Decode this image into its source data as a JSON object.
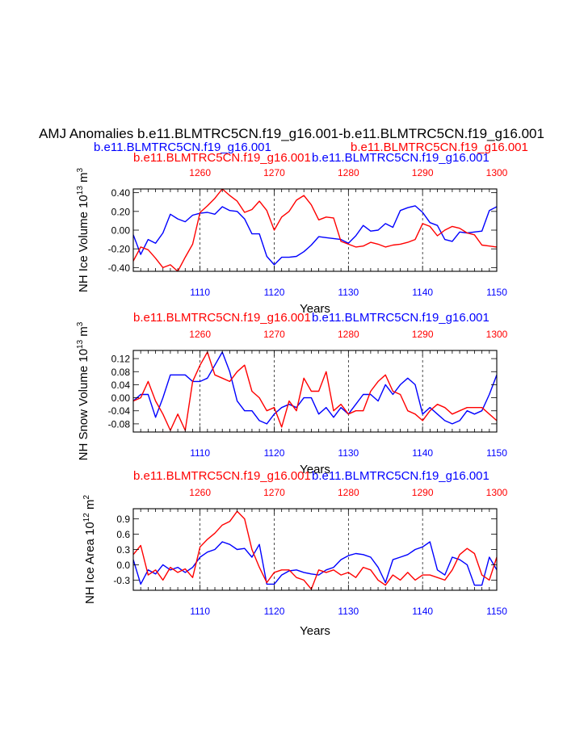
{
  "figure_title": "AMJ Anomalies b.e11.BLMTRC5CN.f19_g16.001-b.e11.BLMTRC5CN.f19_g16.001",
  "subtitle_left": "b.e11.BLMTRC5CN.f19_g16.001",
  "subtitle_right": "b.e11.BLMTRC5CN.f19_g16.001",
  "colors": {
    "blue": "#0000ff",
    "red": "#ff0000",
    "black": "#000000"
  },
  "chart_data": [
    {
      "type": "line",
      "title_left": "b.e11.BLMTRC5CN.f19_g16.001",
      "title_right": "b.e11.BLMTRC5CN.f19_g16.001",
      "ylabel": "NH Ice Volume 10",
      "ylabel_exp": "13",
      "ylabel_unit": " m",
      "ylabel_unit_exp": "3",
      "xlabel": "Years",
      "ylim": [
        -0.44,
        0.44
      ],
      "yticks": [
        -0.4,
        -0.2,
        0.0,
        0.2,
        0.4
      ],
      "ytick_labels": [
        "-0.40",
        "-0.20",
        "0.00",
        "0.20",
        "0.40"
      ],
      "x_bottom": {
        "range": [
          1101,
          1150
        ],
        "ticks": [
          1110,
          1120,
          1130,
          1140,
          1150
        ],
        "tick_labels": [
          "1110",
          "1120",
          "1130",
          "1140",
          "1150"
        ]
      },
      "x_top": {
        "range": [
          1251,
          1300
        ],
        "ticks": [
          1260,
          1270,
          1280,
          1290,
          1300
        ],
        "tick_labels": [
          "1260",
          "1270",
          "1280",
          "1290",
          "1300"
        ]
      },
      "series": [
        {
          "name": "b.e11.BLMTRC5CN.f19_g16.001",
          "color": "blue",
          "axis": "bottom",
          "values": [
            -0.05,
            -0.26,
            -0.1,
            -0.14,
            -0.03,
            0.17,
            0.12,
            0.09,
            0.16,
            0.18,
            0.19,
            0.17,
            0.25,
            0.21,
            0.2,
            0.12,
            -0.04,
            -0.04,
            -0.28,
            -0.37,
            -0.29,
            -0.29,
            -0.28,
            -0.23,
            -0.16,
            -0.07,
            -0.08,
            -0.09,
            -0.1,
            -0.14,
            -0.06,
            0.05,
            -0.01,
            0.0,
            0.07,
            0.03,
            0.21,
            0.24,
            0.26,
            0.19,
            0.08,
            0.05,
            -0.1,
            -0.12,
            -0.02,
            -0.03,
            -0.02,
            -0.01,
            0.21,
            0.25
          ]
        },
        {
          "name": "b.e11.BLMTRC5CN.f19_g16.001",
          "color": "red",
          "axis": "top",
          "values": [
            -0.33,
            -0.18,
            -0.21,
            -0.3,
            -0.4,
            -0.37,
            -0.44,
            -0.29,
            -0.15,
            0.19,
            0.26,
            0.34,
            0.44,
            0.37,
            0.31,
            0.19,
            0.22,
            0.31,
            0.21,
            0.0,
            0.14,
            0.2,
            0.32,
            0.37,
            0.27,
            0.11,
            0.14,
            0.13,
            -0.12,
            -0.15,
            -0.18,
            -0.17,
            -0.13,
            -0.15,
            -0.18,
            -0.16,
            -0.15,
            -0.13,
            -0.1,
            0.07,
            0.04,
            -0.06,
            0.0,
            0.04,
            0.02,
            -0.03,
            -0.05,
            -0.16,
            -0.17,
            -0.18
          ]
        }
      ]
    },
    {
      "type": "line",
      "title_left": "b.e11.BLMTRC5CN.f19_g16.001",
      "title_right": "b.e11.BLMTRC5CN.f19_g16.001",
      "ylabel": "NH Snow Volume 10",
      "ylabel_exp": "13",
      "ylabel_unit": " m",
      "ylabel_unit_exp": "3",
      "xlabel": "Years",
      "ylim": [
        -0.105,
        0.145
      ],
      "yticks": [
        -0.08,
        -0.04,
        0.0,
        0.04,
        0.08,
        0.12
      ],
      "ytick_labels": [
        "-0.08",
        "-0.04",
        "0.00",
        "0.04",
        "0.08",
        "0.12"
      ],
      "x_bottom": {
        "range": [
          1101,
          1150
        ],
        "ticks": [
          1110,
          1120,
          1130,
          1140,
          1150
        ],
        "tick_labels": [
          "1110",
          "1120",
          "1130",
          "1140",
          "1150"
        ]
      },
      "x_top": {
        "range": [
          1251,
          1300
        ],
        "ticks": [
          1260,
          1270,
          1280,
          1290,
          1300
        ],
        "tick_labels": [
          "1260",
          "1270",
          "1280",
          "1290",
          "1300"
        ]
      },
      "series": [
        {
          "name": "b.e11.BLMTRC5CN.f19_g16.001",
          "color": "blue",
          "axis": "bottom",
          "values": [
            -0.01,
            0.01,
            0.01,
            -0.06,
            0.0,
            0.07,
            0.07,
            0.07,
            0.05,
            0.05,
            0.06,
            0.1,
            0.14,
            0.08,
            -0.01,
            -0.04,
            -0.04,
            -0.07,
            -0.08,
            -0.05,
            -0.03,
            -0.02,
            -0.03,
            0.0,
            0.0,
            -0.05,
            -0.03,
            -0.06,
            -0.03,
            -0.05,
            -0.02,
            0.01,
            0.01,
            -0.01,
            0.04,
            0.01,
            0.04,
            0.06,
            0.04,
            -0.05,
            -0.03,
            -0.05,
            -0.07,
            -0.08,
            -0.07,
            -0.04,
            -0.05,
            -0.04,
            0.01,
            0.07
          ]
        },
        {
          "name": "b.e11.BLMTRC5CN.f19_g16.001",
          "color": "red",
          "axis": "top",
          "values": [
            -0.01,
            0.0,
            0.05,
            -0.01,
            -0.05,
            -0.1,
            -0.05,
            -0.1,
            0.05,
            0.1,
            0.14,
            0.07,
            0.06,
            0.05,
            0.08,
            0.1,
            0.02,
            0.0,
            -0.04,
            -0.03,
            -0.09,
            -0.01,
            -0.04,
            0.06,
            0.02,
            0.02,
            0.08,
            -0.04,
            -0.02,
            -0.05,
            -0.04,
            -0.04,
            0.02,
            0.05,
            0.07,
            0.02,
            0.01,
            -0.04,
            -0.05,
            -0.07,
            -0.04,
            -0.02,
            -0.03,
            -0.05,
            -0.04,
            -0.03,
            -0.03,
            -0.03,
            -0.05,
            -0.07
          ]
        }
      ]
    },
    {
      "type": "line",
      "title_left": "b.e11.BLMTRC5CN.f19_g16.001",
      "title_right": "b.e11.BLMTRC5CN.f19_g16.001",
      "ylabel": "NH Ice Area 10",
      "ylabel_exp": "12",
      "ylabel_unit": " m",
      "ylabel_unit_exp": "2",
      "xlabel": "Years",
      "ylim": [
        -0.5,
        1.1
      ],
      "yticks": [
        -0.3,
        0.0,
        0.3,
        0.6,
        0.9
      ],
      "ytick_labels": [
        "-0.3",
        "0.0",
        "0.3",
        "0.6",
        "0.9"
      ],
      "x_bottom": {
        "range": [
          1101,
          1150
        ],
        "ticks": [
          1110,
          1120,
          1130,
          1140,
          1150
        ],
        "tick_labels": [
          "1110",
          "1120",
          "1130",
          "1140",
          "1150"
        ]
      },
      "x_top": {
        "range": [
          1251,
          1300
        ],
        "ticks": [
          1260,
          1270,
          1280,
          1290,
          1300
        ],
        "tick_labels": [
          "1260",
          "1270",
          "1280",
          "1290",
          "1300"
        ]
      },
      "series": [
        {
          "name": "b.e11.BLMTRC5CN.f19_g16.001",
          "color": "blue",
          "axis": "bottom",
          "values": [
            0.1,
            -0.38,
            -0.1,
            -0.18,
            0.0,
            -0.1,
            -0.05,
            -0.15,
            -0.05,
            0.15,
            0.25,
            0.3,
            0.45,
            0.4,
            0.3,
            0.32,
            0.15,
            0.4,
            -0.38,
            -0.38,
            -0.2,
            -0.12,
            -0.1,
            -0.15,
            -0.18,
            -0.2,
            -0.1,
            -0.05,
            0.1,
            0.18,
            0.22,
            0.2,
            0.15,
            -0.05,
            -0.35,
            0.1,
            0.15,
            0.2,
            0.3,
            0.35,
            0.45,
            -0.1,
            -0.2,
            0.15,
            0.1,
            0.0,
            -0.4,
            -0.4,
            0.15,
            -0.1
          ]
        },
        {
          "name": "b.e11.BLMTRC5CN.f19_g16.001",
          "color": "red",
          "axis": "top",
          "values": [
            0.2,
            0.38,
            -0.2,
            -0.1,
            -0.3,
            -0.05,
            -0.15,
            -0.08,
            -0.25,
            0.35,
            0.5,
            0.62,
            0.78,
            0.85,
            1.05,
            0.9,
            0.3,
            -0.05,
            -0.35,
            -0.15,
            -0.1,
            -0.1,
            -0.25,
            -0.3,
            -0.48,
            -0.1,
            -0.15,
            -0.1,
            -0.2,
            -0.15,
            -0.25,
            -0.05,
            -0.1,
            -0.3,
            -0.4,
            -0.2,
            -0.3,
            -0.15,
            -0.3,
            -0.2,
            -0.2,
            -0.25,
            -0.3,
            -0.1,
            0.2,
            0.32,
            0.22,
            -0.2,
            -0.3,
            0.15
          ]
        }
      ]
    }
  ]
}
